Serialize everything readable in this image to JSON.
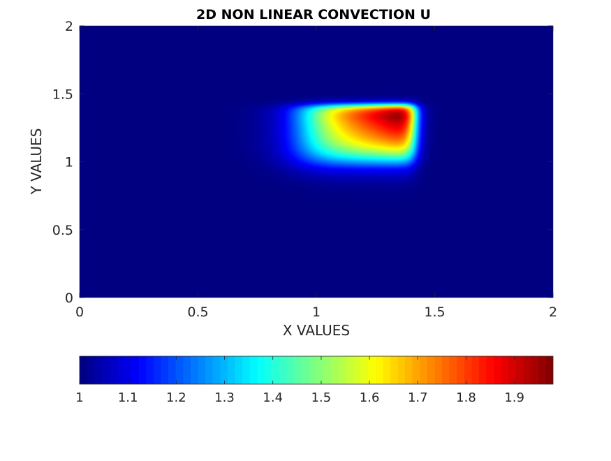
{
  "chart_data": {
    "type": "heatmap",
    "title": "2D NON LINEAR CONVECTION U",
    "xlabel": "X VALUES",
    "ylabel": "Y VALUES",
    "xlim": [
      0,
      2
    ],
    "ylim": [
      0,
      2
    ],
    "x_ticks": [
      0,
      0.5,
      1,
      1.5,
      2
    ],
    "x_tick_labels": [
      "0",
      "0.5",
      "1",
      "1.5",
      "2"
    ],
    "y_ticks": [
      0,
      0.5,
      1,
      1.5,
      2
    ],
    "y_tick_labels": [
      "0",
      "0.5",
      "1",
      "1.5",
      "2"
    ],
    "colormap": "jet",
    "color_range": [
      1,
      1.98
    ],
    "colorbar": {
      "location": "below",
      "ticks": [
        1,
        1.1,
        1.2,
        1.3,
        1.4,
        1.5,
        1.6,
        1.7,
        1.8,
        1.9
      ],
      "tick_labels": [
        "1",
        "1.1",
        "1.2",
        "1.3",
        "1.4",
        "1.5",
        "1.6",
        "1.7",
        "1.8",
        "1.9"
      ]
    },
    "field": {
      "background_value": 1,
      "peak_value": 1.98,
      "peak_location": [
        1.3,
        1.3
      ],
      "high_region": {
        "x": [
          0.75,
          1.45
        ],
        "y": [
          0.75,
          1.45
        ]
      },
      "description_of_shape": "elevated square pulse advected up and to the right, steep front at upper-right, diffuse tail toward lower-left"
    },
    "grid": false
  }
}
